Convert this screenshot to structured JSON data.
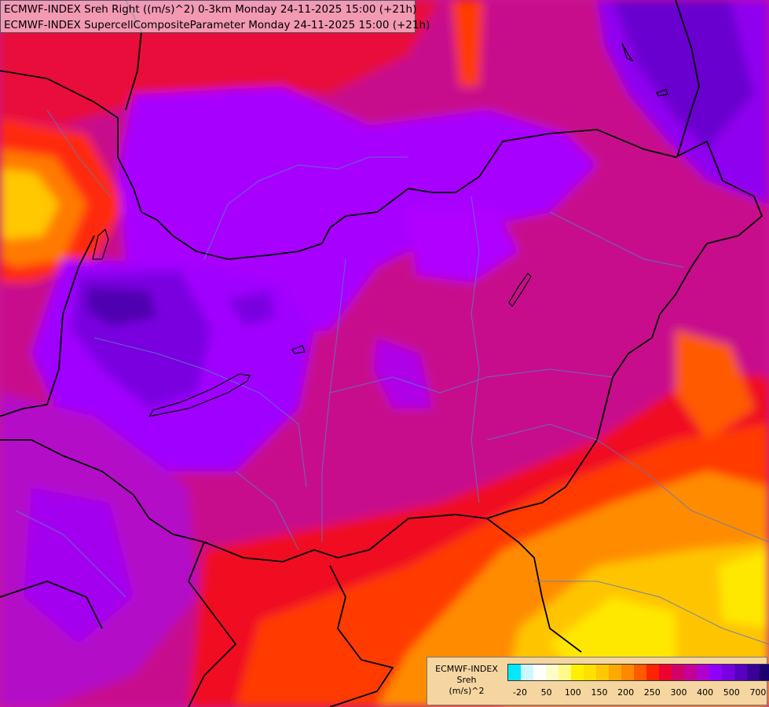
{
  "header": {
    "line1": "ECMWF-INDEX Sreh Right ((m/s)^2) 0-3km Monday 24-11-2025 15:00 (+21h)",
    "line2": "ECMWF-INDEX SupercellCompositeParameter Monday 24-11-2025 15:00 (+21h)"
  },
  "legend": {
    "title_line1": "ECMWF-INDEX",
    "title_line2": "Sreh",
    "title_line3": "(m/s)^2",
    "colors": [
      "#00e8ff",
      "#ccf8ff",
      "#ffffff",
      "#fffccc",
      "#fffa88",
      "#fff000",
      "#ffe000",
      "#ffc800",
      "#ffa800",
      "#ff8800",
      "#ff5a00",
      "#ff2400",
      "#ee0030",
      "#d4006a",
      "#c40098",
      "#b000d0",
      "#9000ff",
      "#7800e0",
      "#5800c0",
      "#3a0098",
      "#1a0070"
    ],
    "tick_labels": [
      "-20",
      "50",
      "100",
      "150",
      "200",
      "250",
      "300",
      "400",
      "500",
      "700"
    ]
  }
}
